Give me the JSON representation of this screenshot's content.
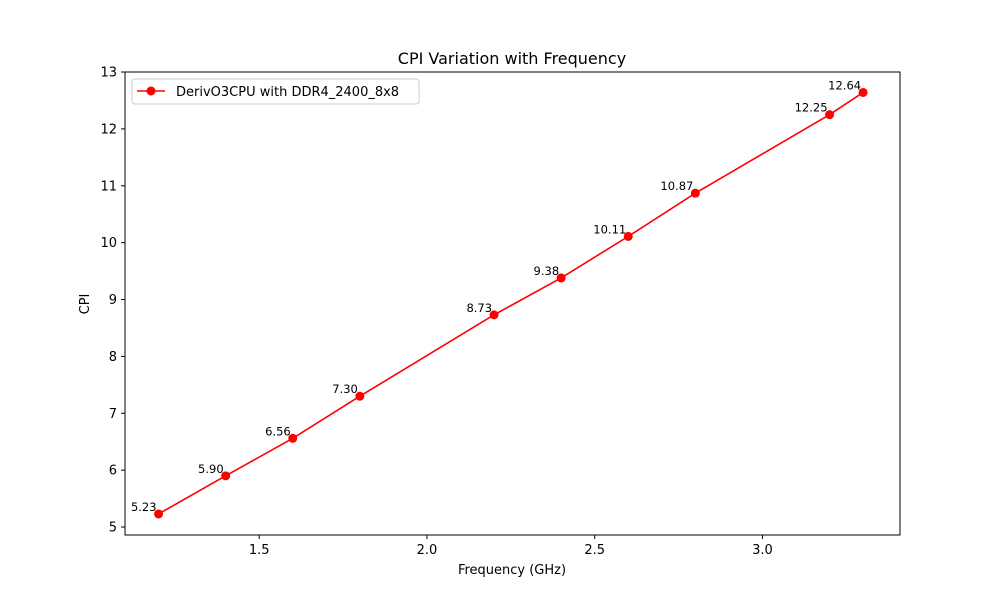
{
  "chart_data": {
    "type": "line",
    "title": "CPI Variation with Frequency",
    "xlabel": "Frequency (GHz)",
    "ylabel": "CPI",
    "xlim": [
      1.1,
      3.41
    ],
    "ylim": [
      4.86,
      13.0
    ],
    "xticks": [
      1.5,
      2.0,
      2.5,
      3.0
    ],
    "xtick_labels": [
      "1.5",
      "2.0",
      "2.5",
      "3.0"
    ],
    "yticks": [
      5,
      6,
      7,
      8,
      9,
      10,
      11,
      12,
      13
    ],
    "ytick_labels": [
      "5",
      "6",
      "7",
      "8",
      "9",
      "10",
      "11",
      "12",
      "13"
    ],
    "grid": false,
    "legend_position": "top-left",
    "series": [
      {
        "name": "DerivO3CPU with DDR4_2400_8x8",
        "color": "#ff0000",
        "marker": "circle",
        "x": [
          1.2,
          1.4,
          1.6,
          1.8,
          2.2,
          2.4,
          2.6,
          2.8,
          3.2,
          3.3
        ],
        "y": [
          5.23,
          5.9,
          6.56,
          7.3,
          8.73,
          9.38,
          10.11,
          10.87,
          12.25,
          12.64
        ],
        "labels": [
          "5.23",
          "5.90",
          "6.56",
          "7.30",
          "8.73",
          "9.38",
          "10.11",
          "10.87",
          "12.25",
          "12.64"
        ]
      }
    ]
  }
}
